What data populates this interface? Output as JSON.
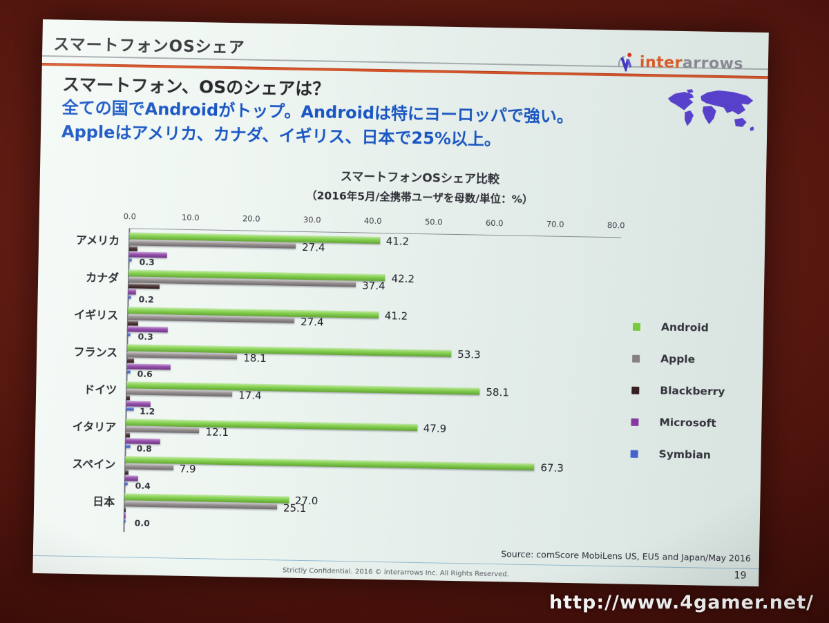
{
  "slide": {
    "header": {
      "title": "スマートフォンOSシェア"
    },
    "logo": {
      "inter": "inter",
      "arrows": "arrows"
    },
    "heading": "スマートフォン、OSのシェアは？",
    "subheading_lines": {
      "line1": "全ての国でAndroidがトップ。Androidは特にヨーロッパで強い。",
      "line2": "Appleはアメリカ、カナダ、イギリス、日本で25%以上。"
    },
    "footer": {
      "source": "Source: comScore MobiLens US, EU5 and Japan/May 2016",
      "confidential": "Strictly Confidential. 2016 © interarrows Inc. All Rights Reserved.",
      "page_number": "19"
    }
  },
  "watermark_url": "http://www.4gamer.net/",
  "colors": {
    "background_maroon": "#5c1a11",
    "accent_orange": "#d9532b",
    "heading_blue": "#1a57c5",
    "android_green": "#7bd03f",
    "apple_gray": "#8b8385",
    "blackberry_dark": "#371e20",
    "microsoft_purple": "#8a3aa4",
    "symbian_blue": "#4465d3"
  },
  "chart_data": {
    "type": "bar",
    "orientation": "horizontal",
    "title": "スマートフォンOSシェア比較",
    "subtitle": "（2016年5月/全携帯ユーザを母数/単位：%）",
    "categories": [
      "アメリカ",
      "カナダ",
      "イギリス",
      "フランス",
      "ドイツ",
      "イタリア",
      "スペイン",
      "日本"
    ],
    "series": [
      {
        "name": "Android",
        "color": "#7bd03f",
        "labels_shown": true,
        "values": [
          41.2,
          42.2,
          41.2,
          53.3,
          58.1,
          47.9,
          67.3,
          27.0
        ]
      },
      {
        "name": "Apple",
        "color": "#8b8385",
        "labels_shown": true,
        "values": [
          27.4,
          37.4,
          27.4,
          18.1,
          17.4,
          12.1,
          7.9,
          25.1
        ]
      },
      {
        "name": "Blackberry",
        "color": "#371e20",
        "labels_shown": false,
        "values": [
          1.4,
          5.1,
          1.7,
          1.1,
          0.6,
          0.7,
          0.6,
          0.0
        ],
        "note": "unlabeled in chart; values estimated from bar lengths"
      },
      {
        "name": "Microsoft",
        "color": "#8a3aa4",
        "labels_shown": false,
        "values": [
          6.2,
          1.2,
          6.6,
          7.2,
          4.0,
          5.7,
          2.2,
          0.0
        ],
        "note": "unlabeled in chart; values estimated from bar lengths"
      },
      {
        "name": "Symbian",
        "color": "#4465d3",
        "labels_shown": true,
        "values": [
          0.3,
          0.2,
          0.3,
          0.6,
          1.2,
          0.8,
          0.4,
          0.0
        ]
      }
    ],
    "x_axis": {
      "position": "top",
      "min": 0,
      "max": 80,
      "ticks": [
        "0.0",
        "10.0",
        "20.0",
        "30.0",
        "40.0",
        "50.0",
        "60.0",
        "70.0",
        "80.0"
      ]
    },
    "legend": {
      "position": "right",
      "entries": [
        "Android",
        "Apple",
        "Blackberry",
        "Microsoft",
        "Symbian"
      ]
    },
    "grid": false
  }
}
